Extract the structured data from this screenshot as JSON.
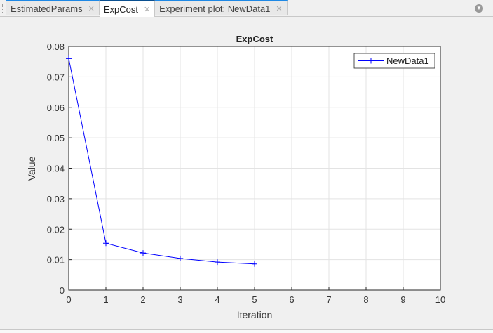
{
  "tabs": [
    {
      "label": "EstimatedParams",
      "active": false
    },
    {
      "label": "ExpCost",
      "active": true
    },
    {
      "label": "Experiment plot: NewData1",
      "active": false
    }
  ],
  "chart_data": {
    "type": "line",
    "title": "ExpCost",
    "xlabel": "Iteration",
    "ylabel": "Value",
    "xlim": [
      0,
      10
    ],
    "ylim": [
      0,
      0.08
    ],
    "xticks": [
      "0",
      "1",
      "2",
      "3",
      "4",
      "5",
      "6",
      "7",
      "8",
      "9",
      "10"
    ],
    "yticks": [
      "0",
      "0.01",
      "0.02",
      "0.03",
      "0.04",
      "0.05",
      "0.06",
      "0.07",
      "0.08"
    ],
    "grid": true,
    "legend_position": "top-right",
    "series": [
      {
        "name": "NewData1",
        "color": "#0000ff",
        "marker": "+",
        "x": [
          0,
          1,
          2,
          3,
          4,
          5
        ],
        "y": [
          0.076,
          0.0154,
          0.0122,
          0.0104,
          0.0092,
          0.0086
        ]
      }
    ]
  }
}
